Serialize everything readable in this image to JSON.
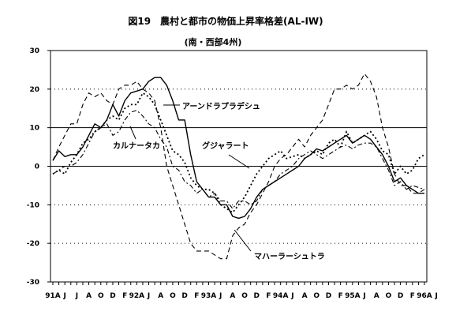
{
  "chart_data": {
    "type": "line",
    "title": "図19　農村と都市の物価上昇率格差(AL-IW)",
    "subtitle": "(南・西部4州)",
    "xlabel": "",
    "ylabel": "",
    "ylim": [
      -30,
      30
    ],
    "ytick_step": 10,
    "yticks": [
      "30",
      "20",
      "10",
      "0",
      "-10",
      "-20",
      "-30"
    ],
    "solid_reference_lines": [
      10,
      0
    ],
    "dotted_reference_lines": [
      20,
      -10,
      -20
    ],
    "grid": false,
    "legend": "none",
    "x_start_month": "1991-04",
    "xticks": [
      "91A",
      "J",
      "J",
      "A",
      "O",
      "D",
      "F",
      "92A",
      "J",
      "A",
      "O",
      "D",
      "F",
      "93A",
      "J",
      "A",
      "O",
      "D",
      "F",
      "94A",
      "J",
      "A",
      "O",
      "D",
      "F",
      "95A",
      "J",
      "A",
      "O",
      "D",
      "F",
      "96A",
      "J"
    ],
    "x_months": [
      "1991-04",
      "1991-05",
      "1991-06",
      "1991-07",
      "1991-08",
      "1991-09",
      "1991-10",
      "1991-11",
      "1991-12",
      "1992-01",
      "1992-02",
      "1992-03",
      "1992-04",
      "1992-05",
      "1992-06",
      "1992-07",
      "1992-08",
      "1992-09",
      "1992-10",
      "1992-11",
      "1992-12",
      "1993-01",
      "1993-02",
      "1993-03",
      "1993-04",
      "1993-05",
      "1993-06",
      "1993-07",
      "1993-08",
      "1993-09",
      "1993-10",
      "1993-11",
      "1993-12",
      "1994-01",
      "1994-02",
      "1994-03",
      "1994-04",
      "1994-05",
      "1994-06",
      "1994-07",
      "1994-08",
      "1994-09",
      "1994-10",
      "1994-11",
      "1994-12",
      "1995-01",
      "1995-02",
      "1995-03",
      "1995-04",
      "1995-05",
      "1995-06",
      "1995-07",
      "1995-08",
      "1995-09",
      "1995-10",
      "1995-11",
      "1995-12",
      "1996-01",
      "1996-02",
      "1996-03",
      "1996-04",
      "1996-05",
      "1996-06"
    ],
    "series": [
      {
        "name": "アーンドラプラデシュ",
        "style": "solid",
        "values": [
          1.5,
          4,
          2.5,
          3,
          3,
          5,
          8,
          11,
          10,
          12,
          16,
          13,
          17,
          19,
          19.5,
          20,
          22,
          23,
          23,
          21,
          17,
          12,
          12,
          3,
          -4,
          -6,
          -8,
          -8,
          -10,
          -10,
          -13,
          -13.5,
          -13,
          -11,
          -8,
          -6,
          -5,
          -4,
          -3,
          -2,
          -1,
          0,
          2,
          3,
          4.5,
          4,
          5,
          6,
          7,
          8,
          6,
          7,
          8,
          7,
          5,
          3,
          0,
          -4,
          -3,
          -5,
          -6,
          -7,
          -7
        ]
      },
      {
        "name": "カルナータカ",
        "style": "dashdot",
        "values": [
          -2,
          -1,
          0,
          0,
          1,
          3,
          6,
          9,
          10,
          11,
          8,
          9,
          12,
          14,
          14.5,
          13,
          11,
          10,
          7,
          5,
          0,
          -1,
          -4,
          -5,
          -7,
          -6,
          -8,
          -7,
          -9,
          -9,
          -11,
          -9,
          -9,
          -10,
          -9,
          -6,
          -5,
          -4,
          -2,
          -1,
          0,
          2,
          3,
          4,
          3,
          2,
          3,
          4,
          5,
          5.5,
          4.5,
          5.5,
          6,
          6,
          5,
          2,
          -1,
          -5,
          -4,
          -6,
          -5,
          -5.5,
          -6
        ]
      },
      {
        "name": "グジャラート",
        "style": "dotted",
        "values": [
          -2,
          -1,
          -2,
          1,
          3,
          6,
          7,
          9,
          10,
          12,
          13,
          12,
          15,
          16,
          16,
          19,
          18,
          16,
          12,
          8,
          4,
          3,
          1,
          -3,
          -5,
          -6,
          -6,
          -7,
          -10,
          -11,
          -12,
          -10,
          -8,
          -5,
          -2,
          0,
          2,
          3,
          4,
          2,
          2.5,
          3,
          2,
          3,
          4,
          3,
          6,
          7,
          5,
          9,
          6,
          7,
          8,
          9,
          7,
          4,
          3,
          -2,
          0,
          -2,
          -1,
          2,
          3
        ]
      },
      {
        "name": "マハーラーシュトラ",
        "style": "dashed",
        "values": [
          1.5,
          5,
          8,
          11,
          11,
          16,
          19,
          18,
          19,
          17,
          16,
          20,
          21,
          21,
          22,
          20,
          19,
          17,
          10,
          0,
          -5,
          -10,
          -15,
          -20,
          -22,
          -22,
          -22,
          -23,
          -24,
          -24,
          -18,
          -16,
          -15,
          -12,
          -10,
          -7,
          -4,
          0,
          2,
          3,
          5,
          7,
          5,
          8,
          10,
          12,
          16,
          20,
          20,
          21,
          20,
          21,
          24,
          22,
          18,
          10,
          5,
          -2,
          -5,
          -5,
          -7,
          -7,
          -6
        ]
      }
    ],
    "annotations": [
      "アーンドラプラデシュ",
      "カルナータカ",
      "グジャラート",
      "マハーラーシュトラ"
    ]
  }
}
